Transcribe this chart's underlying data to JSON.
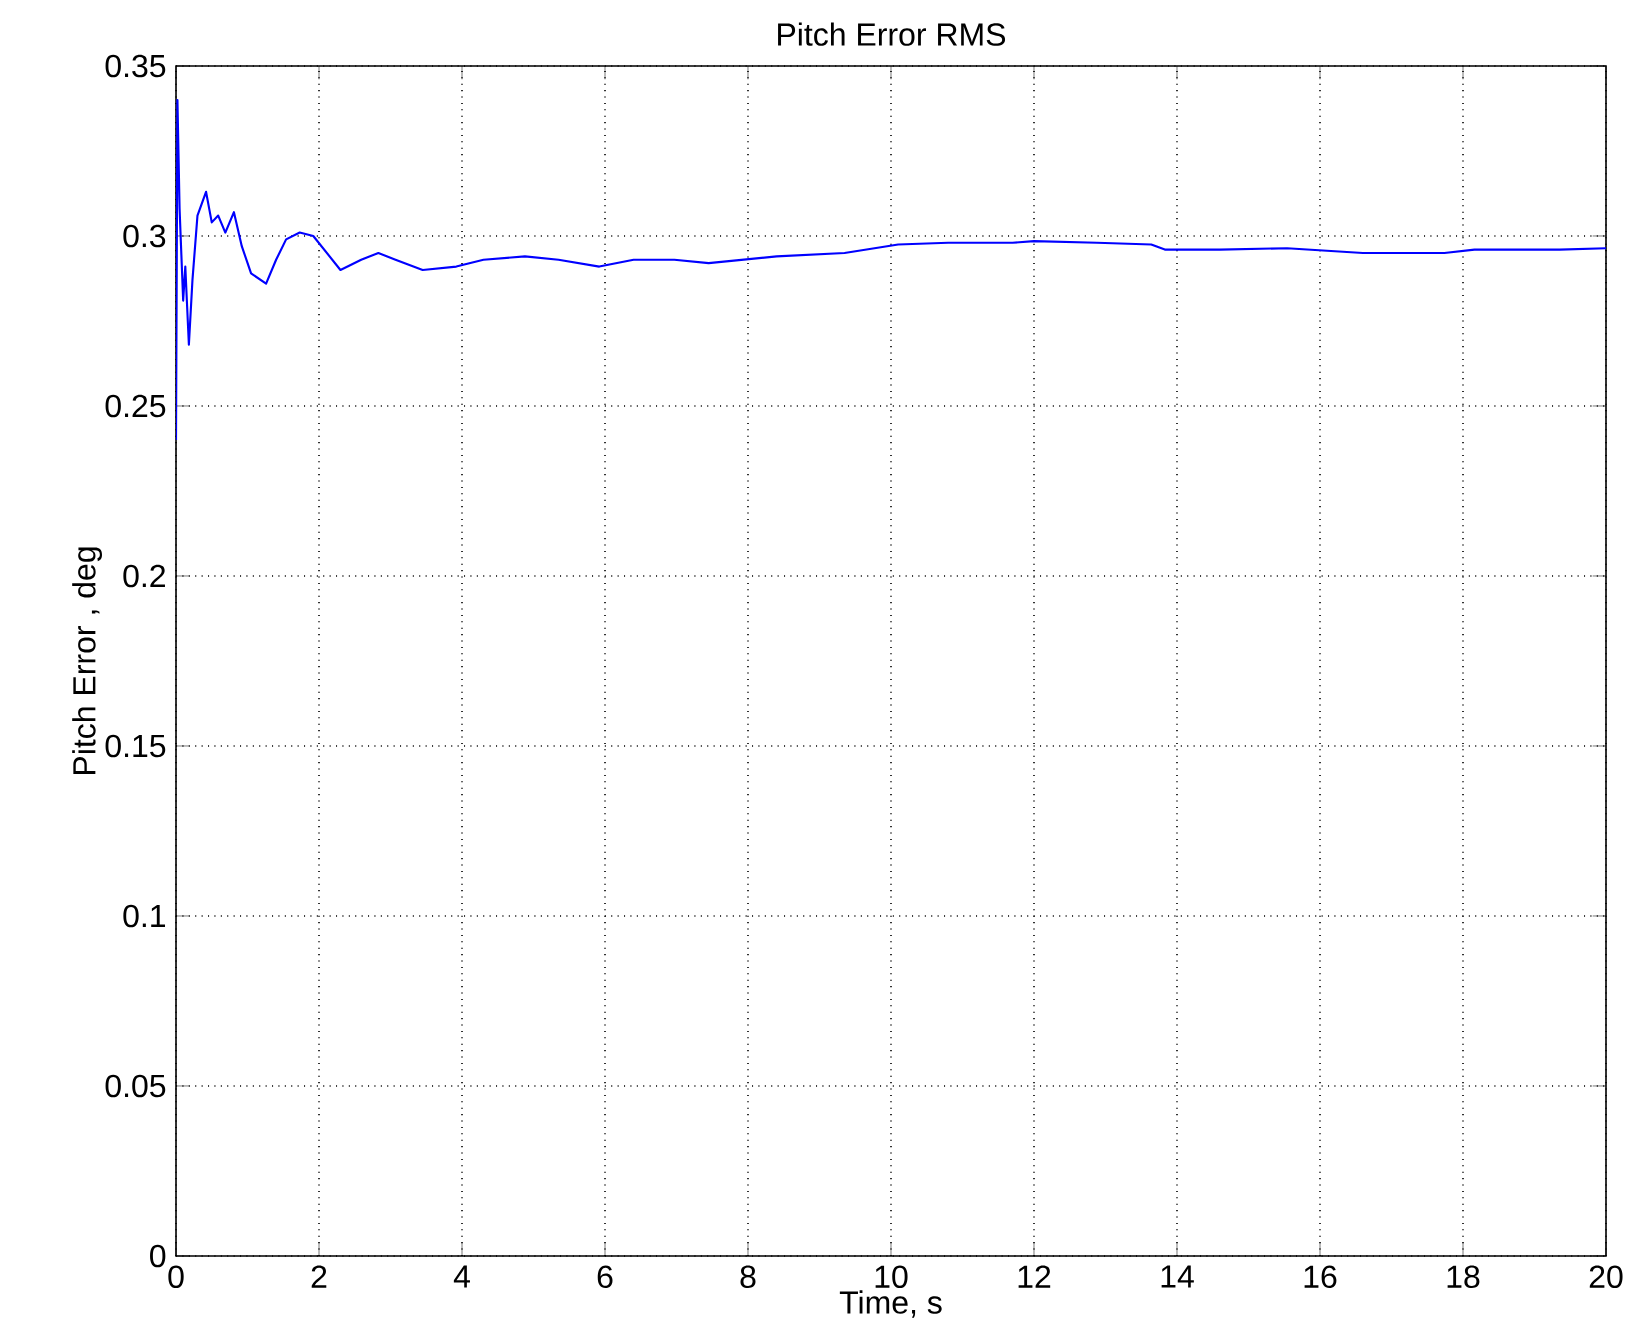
{
  "chart_data": {
    "type": "line",
    "title": "Pitch Error RMS",
    "xlabel": "Time, s",
    "ylabel": "Pitch Error , deg",
    "xlim": [
      0,
      20
    ],
    "ylim": [
      0,
      0.35
    ],
    "xticks": [
      0,
      2,
      4,
      6,
      8,
      10,
      12,
      14,
      16,
      18,
      20
    ],
    "yticks": [
      0,
      0.05,
      0.1,
      0.15,
      0.2,
      0.25,
      0.3,
      0.35
    ],
    "grid": true,
    "line_style": "solid",
    "marker": "none",
    "series": [
      {
        "color": "#0000ff",
        "x": [
          0,
          0.02,
          0.05,
          0.1,
          0.13,
          0.18,
          0.23,
          0.3,
          0.42,
          0.5,
          0.59,
          0.69,
          0.81,
          0.92,
          1.05,
          1.26,
          1.4,
          1.54,
          1.73,
          1.92,
          2.11,
          2.3,
          2.59,
          2.83,
          3.07,
          3.45,
          3.92,
          4.3,
          4.88,
          5.35,
          5.92,
          6.4,
          6.97,
          7.45,
          8.4,
          9.35,
          10.1,
          10.8,
          11.7,
          12.0,
          12.88,
          13.64,
          13.83,
          14.6,
          15.54,
          16.6,
          17.74,
          18.16,
          19.35,
          20
        ],
        "values": [
          0.24,
          0.34,
          0.308,
          0.281,
          0.291,
          0.268,
          0.287,
          0.306,
          0.313,
          0.304,
          0.306,
          0.301,
          0.307,
          0.297,
          0.289,
          0.286,
          0.293,
          0.299,
          0.301,
          0.3,
          0.295,
          0.29,
          0.293,
          0.295,
          0.293,
          0.29,
          0.291,
          0.293,
          0.294,
          0.293,
          0.291,
          0.293,
          0.293,
          0.292,
          0.294,
          0.295,
          0.2975,
          0.298,
          0.298,
          0.2985,
          0.298,
          0.2975,
          0.296,
          0.296,
          0.2964,
          0.295,
          0.295,
          0.296,
          0.296,
          0.2964
        ]
      }
    ]
  }
}
